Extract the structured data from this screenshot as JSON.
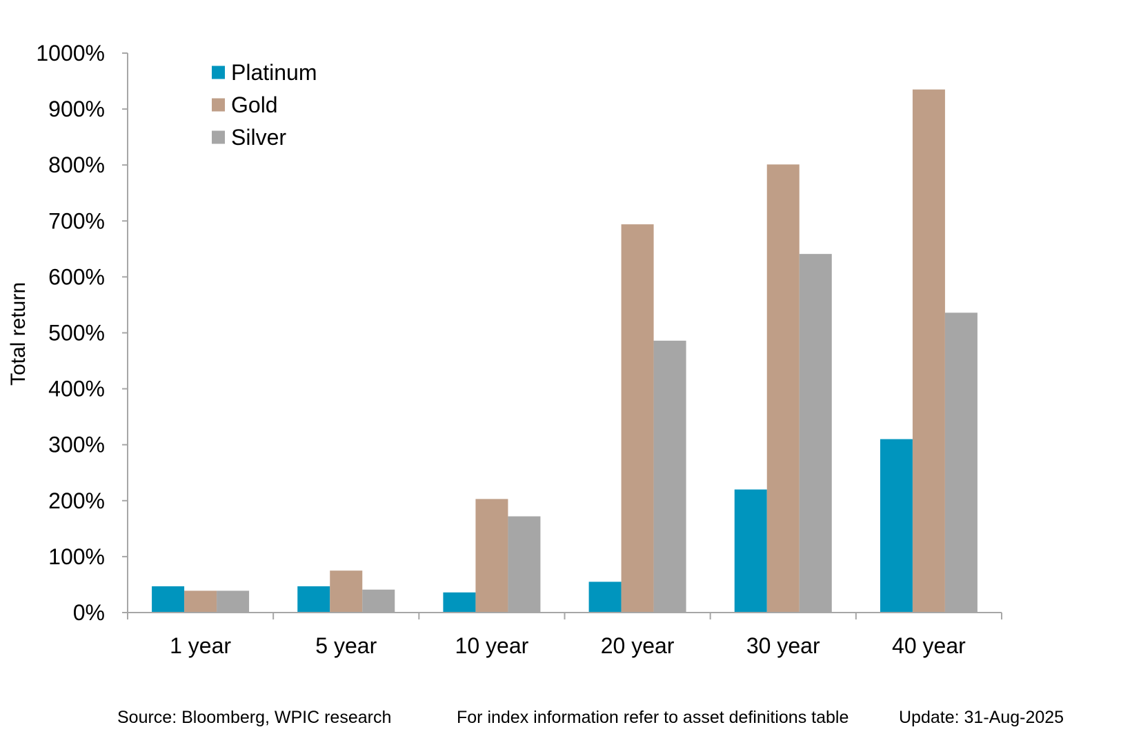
{
  "chart_data": {
    "type": "bar",
    "ylabel": "Total return",
    "xlabel": "",
    "categories": [
      "1 year",
      "5 year",
      "10 year",
      "20 year",
      "30 year",
      "40 year"
    ],
    "series": [
      {
        "name": "Platinum",
        "color": "#0095BE",
        "values": [
          47,
          47,
          36,
          55,
          220,
          310
        ]
      },
      {
        "name": "Gold",
        "color": "#BF9E87",
        "values": [
          39,
          75,
          203,
          694,
          801,
          935
        ]
      },
      {
        "name": "Silver",
        "color": "#A6A6A6",
        "values": [
          39,
          41,
          172,
          486,
          641,
          536
        ]
      }
    ],
    "ylim": [
      0,
      1000
    ],
    "yticks": [
      0,
      100,
      200,
      300,
      400,
      500,
      600,
      700,
      800,
      900,
      1000
    ],
    "ytick_labels": [
      "0%",
      "100%",
      "200%",
      "300%",
      "400%",
      "500%",
      "600%",
      "700%",
      "800%",
      "900%",
      "1000%"
    ],
    "grid": false,
    "legend_position": "top-left"
  },
  "footer": {
    "source": "Source: Bloomberg, WPIC research",
    "note": "For index information refer to asset definitions table",
    "update": "Update: 31-Aug-2025"
  }
}
